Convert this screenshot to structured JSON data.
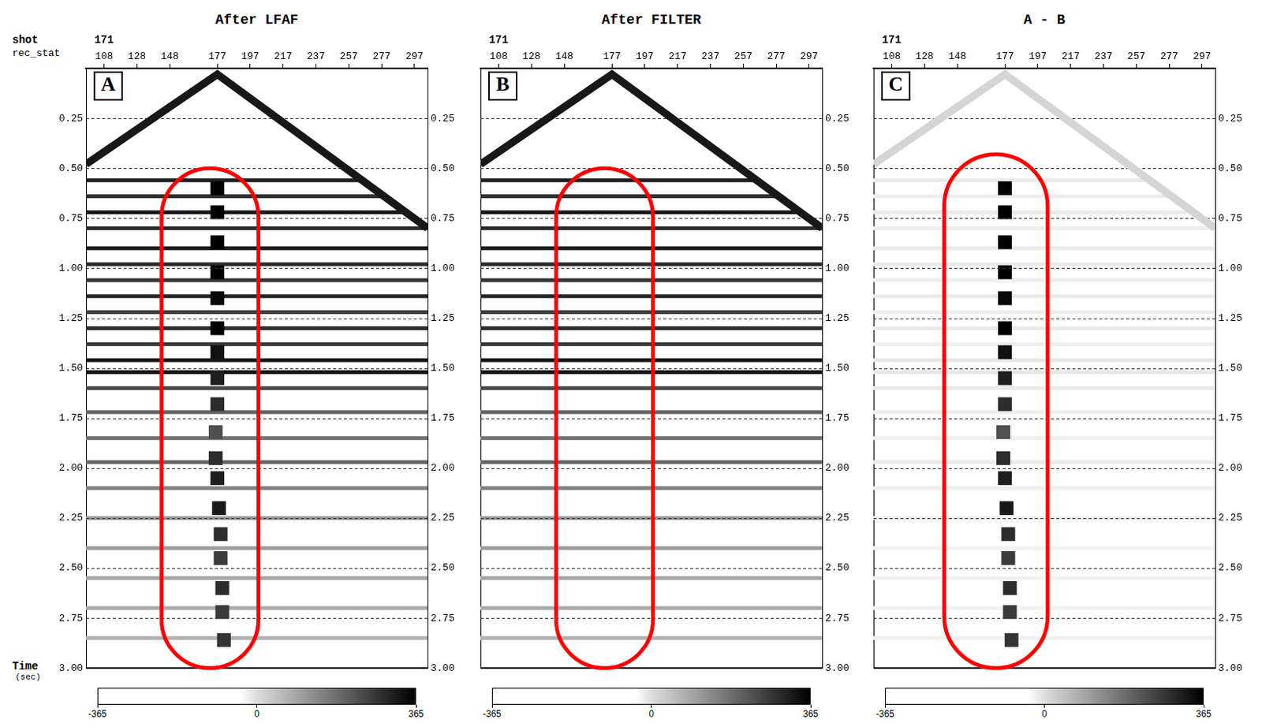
{
  "header": {
    "shot": "shot",
    "rec_stat": "rec_stat",
    "time": "Time",
    "time_unit": "(sec)"
  },
  "chart_data": [
    {
      "type": "seismic",
      "title": "After LFAF",
      "letter": "A",
      "shot": 171,
      "xlim": [
        97,
        305
      ],
      "xticks": [
        108,
        128,
        148,
        177,
        197,
        217,
        237,
        257,
        277,
        297
      ],
      "ylim": [
        0,
        3
      ],
      "yticks": [
        0.25,
        {
          "value": 0.5,
          "label": "0.50"
        },
        0.75,
        {
          "value": 1,
          "label": "1.00"
        },
        1.25,
        {
          "value": 1.5,
          "label": "1.50"
        },
        1.75,
        {
          "value": 2,
          "label": "2.00"
        },
        2.25,
        {
          "value": 2.5,
          "label": "2.50"
        },
        2.75,
        {
          "value": 3,
          "label": "3.00"
        }
      ],
      "grid": true,
      "tick_labels": true,
      "colorbar": {
        "range": [
          -365,
          365
        ],
        "ticks": [
          -365,
          0,
          365
        ]
      },
      "first_break": {
        "x": [
          97,
          177,
          305
        ],
        "y": [
          0.48,
          0.03,
          0.8
        ],
        "amplitude": 330
      },
      "reflections": {
        "t": [
          0.56,
          0.64,
          0.72,
          0.8,
          0.9,
          0.98,
          1.06,
          1.14,
          1.22,
          1.3,
          1.38,
          1.46,
          1.52,
          1.6,
          1.72,
          1.85,
          1.97,
          2.1,
          2.25,
          2.4,
          2.55,
          2.7,
          2.85
        ],
        "amplitude": [
          320,
          300,
          330,
          300,
          320,
          300,
          290,
          310,
          280,
          300,
          280,
          330,
          340,
          260,
          220,
          200,
          220,
          180,
          150,
          140,
          130,
          120,
          110
        ]
      },
      "noise": {
        "x": [
          177,
          177,
          177,
          177,
          177,
          177,
          177,
          177,
          177,
          176,
          176,
          177,
          178,
          179,
          179,
          180,
          180,
          181
        ],
        "t": [
          0.6,
          0.72,
          0.87,
          1.02,
          1.15,
          1.3,
          1.42,
          1.55,
          1.68,
          1.82,
          1.95,
          2.05,
          2.2,
          2.33,
          2.45,
          2.6,
          2.72,
          2.86
        ],
        "amplitude": [
          365,
          365,
          365,
          365,
          350,
          365,
          340,
          320,
          300,
          250,
          300,
          320,
          330,
          300,
          280,
          300,
          280,
          290
        ]
      },
      "highlight": {
        "x": [
          143,
          202
        ],
        "y": [
          0.5,
          3
        ],
        "color": "#ff0000"
      }
    },
    {
      "type": "seismic",
      "title": "After FILTER",
      "letter": "B",
      "shot": 171,
      "xlim": [
        97,
        305
      ],
      "xticks": [
        108,
        128,
        148,
        177,
        197,
        217,
        237,
        257,
        277,
        297
      ],
      "ylim": [
        0,
        3
      ],
      "yticks": [
        0.25,
        {
          "value": 0.5,
          "label": "0.50"
        },
        0.75,
        {
          "value": 1,
          "label": "1.00"
        },
        1.25,
        {
          "value": 1.5,
          "label": "1.50"
        },
        1.75,
        {
          "value": 2,
          "label": "2.00"
        },
        2.25,
        {
          "value": 2.5,
          "label": "2.50"
        },
        2.75,
        {
          "value": 3,
          "label": "3.00"
        }
      ],
      "grid": true,
      "tick_labels": true,
      "colorbar": {
        "range": [
          -365,
          365
        ],
        "ticks": [
          -365,
          0,
          365
        ]
      },
      "first_break": {
        "x": [
          97,
          177,
          305
        ],
        "y": [
          0.48,
          0.03,
          0.8
        ],
        "amplitude": 330
      },
      "reflections": {
        "t": [
          0.56,
          0.64,
          0.72,
          0.8,
          0.9,
          0.98,
          1.06,
          1.14,
          1.22,
          1.3,
          1.38,
          1.46,
          1.52,
          1.6,
          1.72,
          1.85,
          1.97,
          2.1,
          2.25,
          2.4,
          2.55,
          2.7,
          2.85
        ],
        "amplitude": [
          320,
          300,
          330,
          300,
          320,
          300,
          290,
          310,
          280,
          300,
          280,
          330,
          340,
          260,
          220,
          200,
          220,
          180,
          150,
          140,
          130,
          120,
          110
        ]
      },
      "highlight": {
        "x": [
          143,
          202
        ],
        "y": [
          0.5,
          3
        ],
        "color": "#ff0000"
      }
    },
    {
      "type": "seismic",
      "title": "A - B",
      "letter": "C",
      "shot": 171,
      "xlim": [
        97,
        305
      ],
      "xticks": [
        108,
        128,
        148,
        177,
        197,
        217,
        237,
        257,
        277,
        297
      ],
      "ylim": [
        0,
        3
      ],
      "yticks": [
        0.25,
        {
          "value": 0.5,
          "label": "0.50"
        },
        0.75,
        {
          "value": 1,
          "label": "1.00"
        },
        1.25,
        {
          "value": 1.5,
          "label": "1.50"
        },
        1.75,
        {
          "value": 2,
          "label": "2.00"
        },
        2.25,
        {
          "value": 2.5,
          "label": "2.50"
        },
        2.75,
        {
          "value": 3,
          "label": "3.00"
        }
      ],
      "grid": true,
      "tick_labels": true,
      "colorbar": {
        "range": [
          -365,
          365
        ],
        "ticks": [
          -365,
          0,
          365
        ]
      },
      "first_break": {
        "x": [
          97,
          177,
          305
        ],
        "y": [
          0.48,
          0.03,
          0.8
        ],
        "amplitude": 60
      },
      "reflections": {
        "t": [
          0.56,
          0.64,
          0.72,
          0.8,
          0.9,
          0.98,
          1.06,
          1.14,
          1.22,
          1.3,
          1.38,
          1.46,
          1.52,
          1.6,
          1.72,
          1.85,
          1.97,
          2.1,
          2.25,
          2.4,
          2.55,
          2.7,
          2.85
        ],
        "amplitude": [
          30,
          25,
          30,
          25,
          30,
          30,
          25,
          30,
          25,
          30,
          25,
          35,
          35,
          30,
          25,
          25,
          30,
          25,
          25,
          20,
          20,
          20,
          20
        ]
      },
      "noise": {
        "x": [
          177,
          177,
          177,
          177,
          177,
          177,
          177,
          177,
          177,
          176,
          176,
          177,
          178,
          179,
          179,
          180,
          180,
          181
        ],
        "t": [
          0.6,
          0.72,
          0.87,
          1.02,
          1.15,
          1.3,
          1.42,
          1.55,
          1.68,
          1.82,
          1.95,
          2.05,
          2.2,
          2.33,
          2.45,
          2.6,
          2.72,
          2.86
        ],
        "amplitude": [
          365,
          365,
          365,
          365,
          350,
          365,
          340,
          320,
          300,
          250,
          300,
          320,
          330,
          300,
          280,
          300,
          280,
          290
        ]
      },
      "highlight": {
        "x": [
          140,
          203
        ],
        "y": [
          0.43,
          3
        ],
        "color": "#ff0000"
      }
    }
  ]
}
